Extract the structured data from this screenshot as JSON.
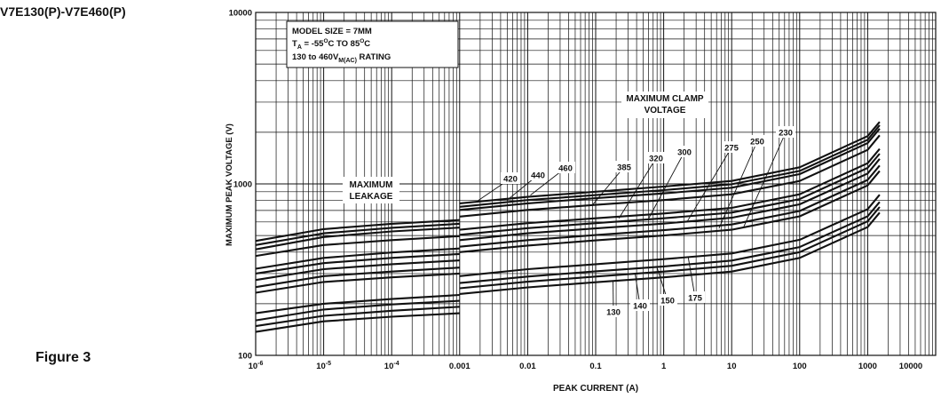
{
  "page": {
    "title": "V7E130(P)-V7E460(P)",
    "figure_label": "Figure 3"
  },
  "chart_data": {
    "type": "line",
    "title": "",
    "xlabel": "PEAK CURRENT (A)",
    "ylabel": "MAXIMUM PEAK VOLTAGE (V)",
    "x_scale": "log",
    "y_scale": "log",
    "xlim": [
      1e-06,
      10000
    ],
    "ylim": [
      100,
      10000
    ],
    "grid": true,
    "x_ticks": [
      {
        "value": 1e-06,
        "base": "10",
        "exp": "-6"
      },
      {
        "value": 1e-05,
        "base": "10",
        "exp": "-5"
      },
      {
        "value": 0.0001,
        "base": "10",
        "exp": "-4"
      },
      {
        "value": 0.001,
        "label": "0.001"
      },
      {
        "value": 0.01,
        "label": "0.01"
      },
      {
        "value": 0.1,
        "label": "0.1"
      },
      {
        "value": 1,
        "label": "1"
      },
      {
        "value": 10,
        "label": "10"
      },
      {
        "value": 100,
        "label": "100"
      },
      {
        "value": 1000,
        "label": "1000"
      },
      {
        "value": 10000,
        "label": "10000"
      }
    ],
    "y_ticks": [
      {
        "value": 100,
        "label": "100"
      },
      {
        "value": 1000,
        "label": "1000"
      },
      {
        "value": 10000,
        "label": "10000"
      }
    ],
    "info_box": {
      "line1": "MODEL SIZE = 7MM",
      "line2_main": "T",
      "line2_sub": "A",
      "line2_a": " = -55",
      "line2_sup1": "O",
      "line2_b": "C TO 85",
      "line2_sup2": "O",
      "line2_c": "C",
      "line3_main": "130 to 460V",
      "line3_sub": "M(AC)",
      "line3_end": " RATING"
    },
    "region_labels": {
      "leakage_line1": "MAXIMUM",
      "leakage_line2": "LEAKAGE",
      "clamp_line1": "MAXIMUM CLAMP",
      "clamp_line2": "VOLTAGE"
    },
    "leakage_series": [
      {
        "name": "460",
        "x": [
          1e-06,
          1e-05,
          0.0001,
          0.001
        ],
        "y": [
          465,
          545,
          585,
          615
        ]
      },
      {
        "name": "440",
        "x": [
          1e-06,
          1e-05,
          0.0001,
          0.001
        ],
        "y": [
          440,
          515,
          555,
          585
        ]
      },
      {
        "name": "420",
        "x": [
          1e-06,
          1e-05,
          0.0001,
          0.001
        ],
        "y": [
          415,
          490,
          528,
          556
        ]
      },
      {
        "name": "385",
        "x": [
          1e-06,
          1e-05,
          0.0001,
          0.001
        ],
        "y": [
          380,
          440,
          470,
          496
        ]
      },
      {
        "name": "320",
        "x": [
          1e-06,
          1e-05,
          0.0001,
          0.001
        ],
        "y": [
          320,
          370,
          398,
          420
        ]
      },
      {
        "name": "300",
        "x": [
          1e-06,
          1e-05,
          0.0001,
          0.001
        ],
        "y": [
          300,
          345,
          370,
          390
        ]
      },
      {
        "name": "275",
        "x": [
          1e-06,
          1e-05,
          0.0001,
          0.001
        ],
        "y": [
          275,
          318,
          340,
          358
        ]
      },
      {
        "name": "250",
        "x": [
          1e-06,
          1e-05,
          0.0001,
          0.001
        ],
        "y": [
          250,
          290,
          308,
          325
        ]
      },
      {
        "name": "230",
        "x": [
          1e-06,
          1e-05,
          0.0001,
          0.001
        ],
        "y": [
          232,
          268,
          285,
          300
        ]
      },
      {
        "name": "175",
        "x": [
          1e-06,
          1e-05,
          0.0001,
          0.001
        ],
        "y": [
          176,
          200,
          213,
          225
        ]
      },
      {
        "name": "150",
        "x": [
          1e-06,
          1e-05,
          0.0001,
          0.001
        ],
        "y": [
          160,
          185,
          198,
          208
        ]
      },
      {
        "name": "140",
        "x": [
          1e-06,
          1e-05,
          0.0001,
          0.001
        ],
        "y": [
          148,
          170,
          182,
          192
        ]
      },
      {
        "name": "130",
        "x": [
          1e-06,
          1e-05,
          0.0001,
          0.001
        ],
        "y": [
          137,
          158,
          168,
          176
        ]
      }
    ],
    "clamp_series": [
      {
        "name": "460",
        "x": [
          0.001,
          0.01,
          0.1,
          1,
          10,
          100,
          1000,
          1500
        ],
        "y": [
          770,
          840,
          900,
          965,
          1040,
          1250,
          1900,
          2300
        ]
      },
      {
        "name": "440",
        "x": [
          0.001,
          0.01,
          0.1,
          1,
          10,
          100,
          1000,
          1500
        ],
        "y": [
          735,
          805,
          860,
          920,
          995,
          1190,
          1810,
          2200
        ]
      },
      {
        "name": "420",
        "x": [
          0.001,
          0.01,
          0.1,
          1,
          10,
          100,
          1000,
          1500
        ],
        "y": [
          705,
          770,
          825,
          880,
          950,
          1140,
          1730,
          2100
        ]
      },
      {
        "name": "385",
        "x": [
          0.001,
          0.01,
          0.1,
          1,
          10,
          100,
          1000,
          1500
        ],
        "y": [
          645,
          705,
          755,
          805,
          870,
          1040,
          1580,
          1920
        ]
      },
      {
        "name": "320",
        "x": [
          0.001,
          0.01,
          0.1,
          1,
          10,
          100,
          1000,
          1500
        ],
        "y": [
          540,
          590,
          630,
          672,
          725,
          870,
          1320,
          1600
        ]
      },
      {
        "name": "300",
        "x": [
          0.001,
          0.01,
          0.1,
          1,
          10,
          100,
          1000,
          1500
        ],
        "y": [
          505,
          552,
          590,
          630,
          680,
          815,
          1240,
          1500
        ]
      },
      {
        "name": "275",
        "x": [
          0.001,
          0.01,
          0.1,
          1,
          10,
          100,
          1000,
          1500
        ],
        "y": [
          470,
          515,
          550,
          587,
          635,
          760,
          1150,
          1400
        ]
      },
      {
        "name": "250",
        "x": [
          0.001,
          0.01,
          0.1,
          1,
          10,
          100,
          1000,
          1500
        ],
        "y": [
          430,
          470,
          503,
          537,
          580,
          695,
          1055,
          1280
        ]
      },
      {
        "name": "230",
        "x": [
          0.001,
          0.01,
          0.1,
          1,
          10,
          100,
          1000,
          1500
        ],
        "y": [
          400,
          437,
          468,
          500,
          540,
          647,
          980,
          1190
        ]
      },
      {
        "name": "175",
        "x": [
          0.001,
          0.01,
          0.1,
          1,
          10,
          100,
          1000,
          1500
        ],
        "y": [
          290,
          318,
          340,
          364,
          393,
          472,
          713,
          865
        ]
      },
      {
        "name": "150",
        "x": [
          0.001,
          0.01,
          0.1,
          1,
          10,
          100,
          1000,
          1500
        ],
        "y": [
          264,
          288,
          309,
          330,
          357,
          428,
          648,
          785
        ]
      },
      {
        "name": "140",
        "x": [
          0.001,
          0.01,
          0.1,
          1,
          10,
          100,
          1000,
          1500
        ],
        "y": [
          246,
          269,
          288,
          308,
          333,
          400,
          605,
          733
        ]
      },
      {
        "name": "130",
        "x": [
          0.001,
          0.01,
          0.1,
          1,
          10,
          100,
          1000,
          1500
        ],
        "y": [
          228,
          249,
          267,
          285,
          308,
          370,
          560,
          680
        ]
      }
    ],
    "callouts": [
      {
        "name": "420",
        "point": [
          0.0017,
          780
        ]
      },
      {
        "name": "440",
        "point": [
          0.005,
          805
        ]
      },
      {
        "name": "460",
        "point": [
          0.011,
          860
        ]
      },
      {
        "name": "385",
        "point": [
          0.09,
          755
        ]
      },
      {
        "name": "320",
        "point": [
          0.22,
          630
        ]
      },
      {
        "name": "300",
        "point": [
          0.6,
          628
        ]
      },
      {
        "name": "275",
        "point": [
          2.2,
          600
        ]
      },
      {
        "name": "250",
        "point": [
          6.5,
          550
        ]
      },
      {
        "name": "230",
        "point": [
          15,
          560
        ]
      },
      {
        "name": "130",
        "point": [
          0.18,
          274
        ]
      },
      {
        "name": "140",
        "point": [
          0.38,
          300
        ]
      },
      {
        "name": "150",
        "point": [
          0.8,
          325
        ]
      },
      {
        "name": "175",
        "point": [
          2.3,
          372
        ]
      }
    ]
  }
}
